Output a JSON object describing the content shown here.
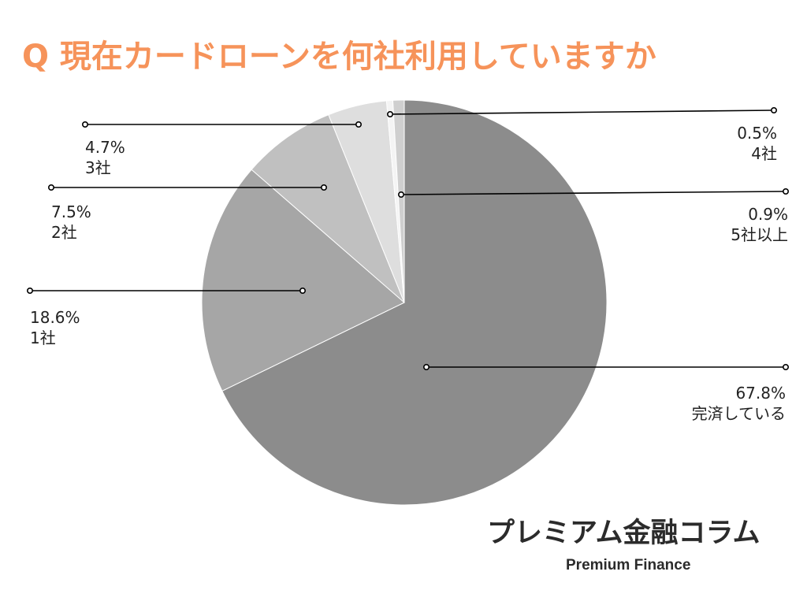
{
  "title": "Q 現在カードローンを何社利用していますか",
  "brand": {
    "name_jp": "プレミアム金融コラム",
    "name_en": "Premium Finance"
  },
  "chart_data": {
    "type": "pie",
    "title": "Q 現在カードローンを何社利用していますか",
    "slices": [
      {
        "label": "完済している",
        "value": 67.8,
        "display": "67.8%",
        "color": "#8c8c8c"
      },
      {
        "label": "1社",
        "value": 18.6,
        "display": "18.6%",
        "color": "#a6a6a6"
      },
      {
        "label": "2社",
        "value": 7.5,
        "display": "7.5%",
        "color": "#c0c0c0"
      },
      {
        "label": "3社",
        "value": 4.7,
        "display": "4.7%",
        "color": "#dedede"
      },
      {
        "label": "4社",
        "value": 0.5,
        "display": "0.5%",
        "color": "#f4f4f4"
      },
      {
        "label": "5社以上",
        "value": 0.9,
        "display": "0.9%",
        "color": "#cfcfcf"
      }
    ],
    "start_angle": "12 o'clock",
    "direction": "clockwise",
    "legend": "none (leader-line labels)"
  }
}
